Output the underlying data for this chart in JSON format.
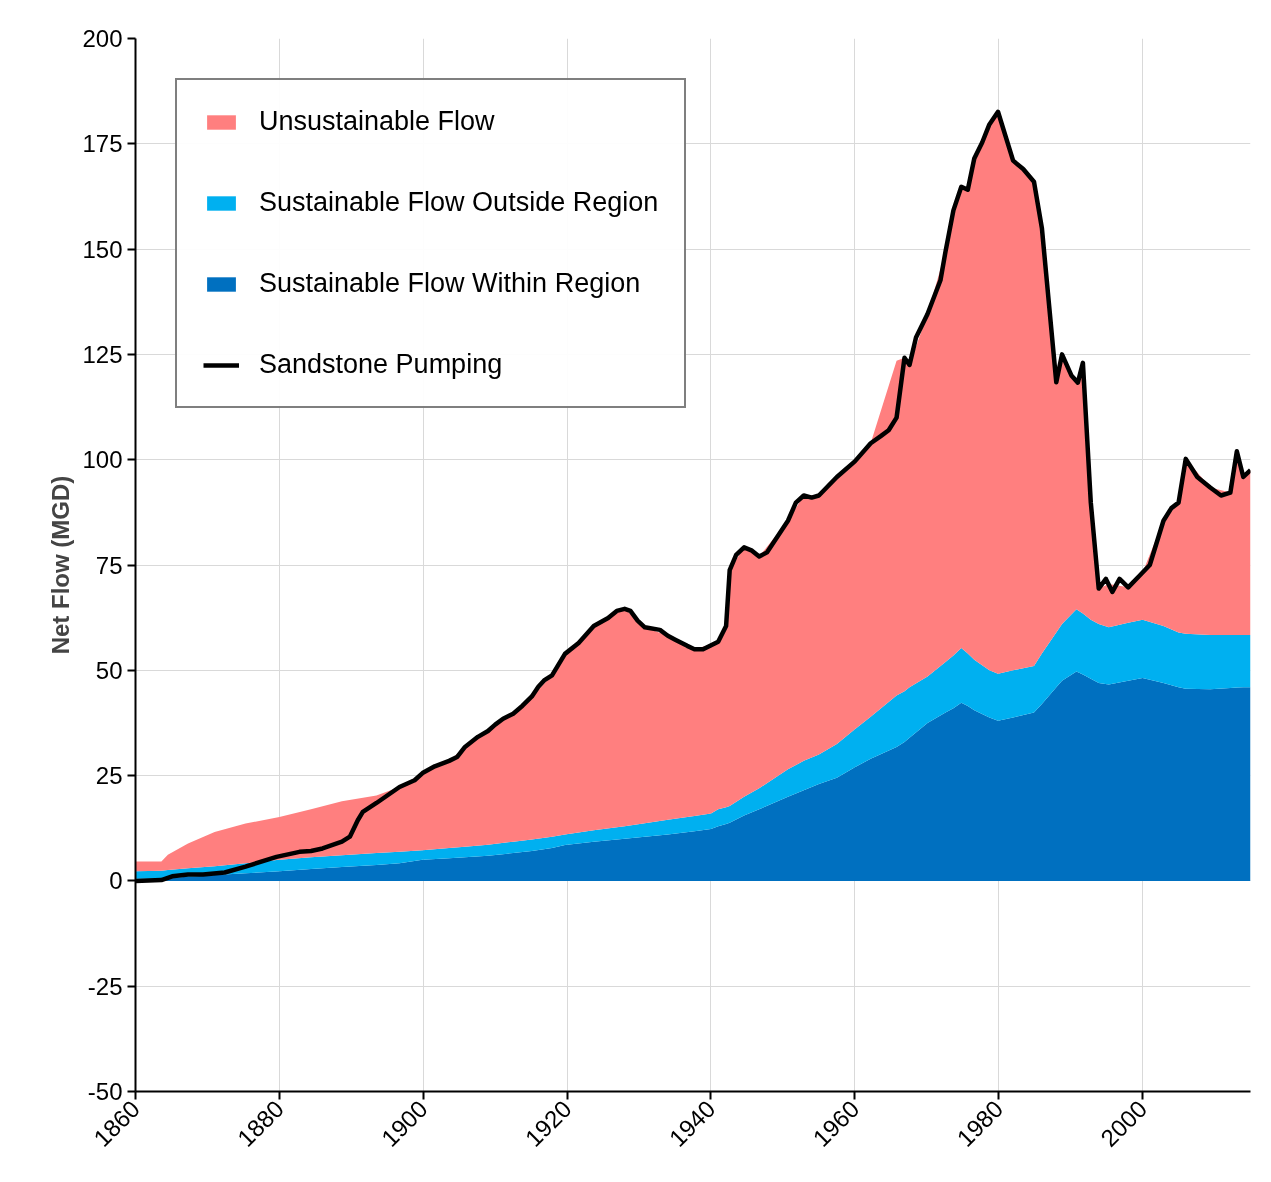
{
  "chart_data": {
    "type": "area",
    "stacked": true,
    "ylabel": "Net Flow (MGD)",
    "x": [
      1860,
      1863.6,
      1864.5,
      1867.3,
      1871,
      1875.3,
      1880,
      1884.4,
      1888.7,
      1893.5,
      1896.7,
      1899.9,
      1903.6,
      1905.8,
      1909,
      1912.5,
      1915.1,
      1917.9,
      1919.7,
      1923.7,
      1928,
      1930.8,
      1934,
      1937.7,
      1940,
      1941,
      1942.1,
      1942.6,
      1944.6,
      1946.7,
      1950.7,
      1952.9,
      1955,
      1957.5,
      1960,
      1962.2,
      1965.8,
      1966.9,
      1967.6,
      1970.1,
      1972.6,
      1973.7,
      1974.8,
      1975.7,
      1976.6,
      1978.7,
      1979.9,
      1982,
      1984.9,
      1986,
      1988,
      1988.8,
      1990.8,
      1991.7,
      1992.8,
      1993.9,
      1995.3,
      1998,
      2000,
      2002.9,
      2005,
      2006,
      2009.4,
      2012.2,
      2013.1,
      2014,
      2015
    ],
    "series": [
      {
        "name": "Sustainable Flow Within Region",
        "color": "#0070c0",
        "values": [
          0.5,
          0.6,
          0.7,
          1.0,
          1.4,
          1.8,
          2.3,
          2.8,
          3.3,
          3.8,
          4.2,
          5.0,
          5.4,
          5.6,
          6.0,
          6.6,
          7.1,
          7.8,
          8.5,
          9.3,
          10.0,
          10.5,
          11.0,
          11.8,
          12.3,
          13.0,
          13.5,
          13.8,
          15.5,
          17,
          20,
          21.5,
          23,
          24.5,
          27,
          29,
          31.8,
          33,
          34,
          37.5,
          40,
          41,
          42.3,
          41.5,
          40.5,
          38.8,
          38,
          38.8,
          40,
          42,
          46,
          47.5,
          49.7,
          49,
          48,
          47,
          46.6,
          47.5,
          48.2,
          47,
          46,
          45.6,
          45.5,
          45.8,
          45.9,
          46,
          46
        ]
      },
      {
        "name": "Sustainable Flow Outside Region",
        "color": "#00b0f0",
        "values": [
          1.8,
          1.8,
          1.9,
          2.0,
          2.1,
          2.4,
          2.7,
          2.8,
          2.8,
          2.8,
          2.7,
          2.3,
          2.4,
          2.5,
          2.6,
          2.7,
          2.7,
          2.7,
          2.5,
          2.7,
          3.0,
          3.2,
          3.5,
          3.6,
          3.7,
          4.0,
          4.0,
          4.0,
          4.5,
          5.0,
          6.5,
          7.0,
          7.0,
          8.0,
          9.0,
          10.0,
          12.2,
          12.0,
          12.0,
          11.0,
          12.0,
          12.5,
          13.0,
          12.5,
          12.0,
          11.2,
          11.2,
          11.2,
          11.0,
          12.0,
          13.0,
          13.5,
          14.8,
          14.5,
          14.0,
          14.0,
          13.6,
          13.8,
          13.8,
          13.5,
          13.0,
          13.1,
          12.9,
          12.6,
          12.5,
          12.4,
          12.4
        ]
      },
      {
        "name": "Unsustainable Flow",
        "color": "#ff7f7f",
        "values": [
          2.3,
          2.2,
          3.6,
          5.9,
          8.1,
          9.4,
          10.2,
          11.4,
          12.8,
          13.7,
          15.4,
          18.3,
          20.7,
          23.7,
          27.0,
          30.4,
          34.0,
          38.3,
          42.9,
          48.5,
          51.6,
          46.5,
          43.7,
          39.6,
          40.2,
          39.8,
          43.0,
          56.0,
          59.2,
          55.0,
          59.0,
          63.0,
          61.5,
          63.4,
          63.6,
          64.9,
          79.5,
          79.2,
          76.5,
          86.1,
          97.4,
          105.7,
          109.5,
          110.1,
          119.0,
          129.6,
          133.4,
          121.0,
          115.0,
          101.0,
          59.4,
          64.0,
          54.3,
          59.5,
          27.8,
          8.4,
          10.3,
          8.4,
          11.2,
          25.0,
          30.8,
          41.5,
          35.0,
          33.8,
          43.6,
          37.5,
          39.1
        ]
      },
      {
        "name": "Sandstone Pumping",
        "type": "line",
        "color": "#000000",
        "line_style": "solid",
        "marker": "none",
        "x": [
          1860,
          1863.6,
          1865.1,
          1867.3,
          1869.4,
          1872.4,
          1875.3,
          1879.6,
          1882.8,
          1884.4,
          1886,
          1888.7,
          1889.8,
          1890.9,
          1891.6,
          1893.5,
          1896.7,
          1898.8,
          1899.9,
          1901.6,
          1903.6,
          1904.7,
          1905.8,
          1907.6,
          1909,
          1910,
          1911.1,
          1912.5,
          1913.8,
          1915.1,
          1916,
          1916.8,
          1917.9,
          1919.7,
          1921.6,
          1923.7,
          1925.7,
          1926.9,
          1928,
          1928.8,
          1929.8,
          1930.8,
          1932.9,
          1934,
          1935.1,
          1936.7,
          1937.7,
          1938.9,
          1941,
          1942.1,
          1942.6,
          1943.5,
          1944.6,
          1945.7,
          1946.7,
          1947.8,
          1950.7,
          1951.8,
          1952.9,
          1954,
          1955,
          1957.5,
          1960,
          1962.2,
          1963.6,
          1964.7,
          1965.8,
          1966.9,
          1967.6,
          1968.5,
          1970.1,
          1971.9,
          1972.6,
          1973.7,
          1974.8,
          1975.7,
          1976.6,
          1977.7,
          1978.7,
          1979.9,
          1982,
          1983.4,
          1984.9,
          1986,
          1988,
          1988.8,
          1990.1,
          1991,
          1991.7,
          1992.8,
          1993.9,
          1994.9,
          1995.8,
          1996.8,
          1998,
          1999.6,
          2001,
          2002.9,
          2004,
          2005,
          2006,
          2007.6,
          2009.4,
          2010.9,
          2012.2,
          2013.1,
          2014,
          2015
        ],
        "values": [
          0,
          0.2,
          1.1,
          1.5,
          1.5,
          2,
          3.4,
          5.7,
          6.9,
          7.1,
          7.7,
          9.3,
          10.5,
          14.4,
          16.4,
          18.5,
          22.3,
          23.9,
          25.6,
          27.2,
          28.5,
          29.4,
          31.8,
          34.2,
          35.6,
          37.1,
          38.5,
          39.7,
          41.6,
          43.8,
          46.1,
          47.6,
          48.8,
          53.9,
          56.5,
          60.5,
          62.4,
          64.1,
          64.6,
          64.1,
          61.8,
          60.2,
          59.6,
          58.2,
          57.2,
          55.8,
          55,
          55,
          56.8,
          60.5,
          73.8,
          77.4,
          79.2,
          78.4,
          77,
          78,
          85.5,
          89.8,
          91.5,
          91,
          91.5,
          95.9,
          99.6,
          103.9,
          105.6,
          107,
          110,
          124.2,
          122.5,
          129,
          134.6,
          142.6,
          149.4,
          159.2,
          164.8,
          164.1,
          171.5,
          175.3,
          179.6,
          182.6,
          171,
          169,
          166,
          155,
          118.4,
          125,
          120,
          118.3,
          123,
          89.8,
          69.4,
          71.7,
          68.6,
          71.7,
          69.7,
          72.5,
          75,
          85.5,
          88.5,
          89.8,
          100.2,
          95.9,
          93.4,
          91.5,
          92.2,
          102,
          95.9,
          97.5
        ]
      }
    ],
    "xlim": [
      1860,
      2015
    ],
    "xticks": [
      1860,
      1880,
      1900,
      1920,
      1940,
      1960,
      1980,
      2000
    ],
    "ylim": [
      -50,
      200
    ],
    "yticks": [
      -50,
      -25,
      0,
      25,
      50,
      75,
      100,
      125,
      150,
      175,
      200
    ],
    "grid": true,
    "legend": "top left"
  }
}
